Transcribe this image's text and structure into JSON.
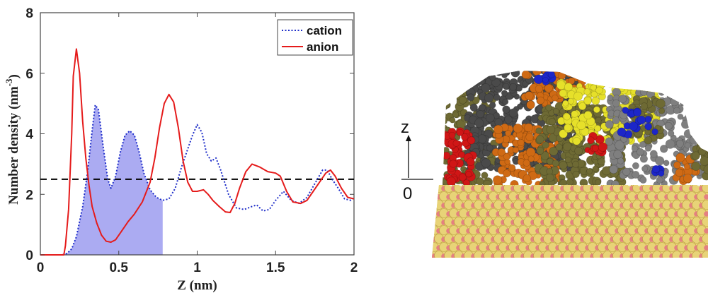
{
  "chart_data": {
    "type": "line",
    "xlabel": "Z (nm)",
    "ylabel_main": "Number density (nm",
    "ylabel_sup": "-3",
    "ylabel_close": ")",
    "xlim": [
      0,
      2
    ],
    "ylim": [
      0,
      8
    ],
    "x_ticks": [
      0,
      0.5,
      1,
      1.5,
      2
    ],
    "x_tick_labels": [
      "0",
      "0.5",
      "1",
      "1.5",
      "2"
    ],
    "y_ticks": [
      0,
      2,
      4,
      6,
      8
    ],
    "y_tick_labels": [
      "0",
      "2",
      "4",
      "6",
      "8"
    ],
    "legend_position": "top-right",
    "reference_line": {
      "y": 2.5,
      "style": "dashed",
      "color": "#000000"
    },
    "shaded_region": {
      "series": "cation",
      "x_from": 0,
      "x_to": 0.78,
      "color": "#9c9cf0"
    },
    "series": [
      {
        "name": "cation",
        "color": "#1f2ec9",
        "style": "dotted",
        "points": [
          [
            0,
            0
          ],
          [
            0.14,
            0
          ],
          [
            0.17,
            0.05
          ],
          [
            0.2,
            0.2
          ],
          [
            0.23,
            0.6
          ],
          [
            0.27,
            1.6
          ],
          [
            0.3,
            2.7
          ],
          [
            0.33,
            4.1
          ],
          [
            0.35,
            4.95
          ],
          [
            0.37,
            4.8
          ],
          [
            0.4,
            3.6
          ],
          [
            0.43,
            2.5
          ],
          [
            0.45,
            2.2
          ],
          [
            0.48,
            2.6
          ],
          [
            0.51,
            3.4
          ],
          [
            0.54,
            3.95
          ],
          [
            0.57,
            4.1
          ],
          [
            0.6,
            3.95
          ],
          [
            0.63,
            3.4
          ],
          [
            0.66,
            2.7
          ],
          [
            0.7,
            2.15
          ],
          [
            0.74,
            1.9
          ],
          [
            0.78,
            1.8
          ],
          [
            0.82,
            1.85
          ],
          [
            0.86,
            2.2
          ],
          [
            0.9,
            2.9
          ],
          [
            0.94,
            3.5
          ],
          [
            0.97,
            3.95
          ],
          [
            1.0,
            4.3
          ],
          [
            1.03,
            4.05
          ],
          [
            1.06,
            3.35
          ],
          [
            1.09,
            3.1
          ],
          [
            1.12,
            3.2
          ],
          [
            1.15,
            2.8
          ],
          [
            1.2,
            2.0
          ],
          [
            1.25,
            1.55
          ],
          [
            1.3,
            1.5
          ],
          [
            1.35,
            1.6
          ],
          [
            1.38,
            1.65
          ],
          [
            1.42,
            1.45
          ],
          [
            1.46,
            1.5
          ],
          [
            1.5,
            1.8
          ],
          [
            1.55,
            2.1
          ],
          [
            1.6,
            1.8
          ],
          [
            1.65,
            1.7
          ],
          [
            1.7,
            1.9
          ],
          [
            1.75,
            2.35
          ],
          [
            1.8,
            2.8
          ],
          [
            1.83,
            2.8
          ],
          [
            1.86,
            2.5
          ],
          [
            1.9,
            2.2
          ],
          [
            1.94,
            1.85
          ],
          [
            1.98,
            1.8
          ],
          [
            2.0,
            1.9
          ]
        ]
      },
      {
        "name": "anion",
        "color": "#e51b1b",
        "style": "solid",
        "points": [
          [
            0,
            0
          ],
          [
            0.15,
            0
          ],
          [
            0.16,
            0.3
          ],
          [
            0.18,
            1.5
          ],
          [
            0.2,
            4.0
          ],
          [
            0.21,
            5.9
          ],
          [
            0.23,
            6.8
          ],
          [
            0.25,
            6.0
          ],
          [
            0.27,
            4.4
          ],
          [
            0.29,
            3.2
          ],
          [
            0.31,
            2.3
          ],
          [
            0.33,
            1.6
          ],
          [
            0.36,
            1.05
          ],
          [
            0.39,
            0.65
          ],
          [
            0.42,
            0.45
          ],
          [
            0.45,
            0.42
          ],
          [
            0.48,
            0.5
          ],
          [
            0.52,
            0.8
          ],
          [
            0.56,
            1.1
          ],
          [
            0.6,
            1.35
          ],
          [
            0.65,
            1.75
          ],
          [
            0.7,
            2.4
          ],
          [
            0.73,
            3.2
          ],
          [
            0.76,
            4.2
          ],
          [
            0.79,
            5.0
          ],
          [
            0.82,
            5.3
          ],
          [
            0.85,
            5.05
          ],
          [
            0.88,
            4.2
          ],
          [
            0.91,
            3.1
          ],
          [
            0.94,
            2.4
          ],
          [
            0.97,
            2.1
          ],
          [
            1.0,
            2.1
          ],
          [
            1.04,
            2.15
          ],
          [
            1.07,
            2.0
          ],
          [
            1.1,
            1.8
          ],
          [
            1.14,
            1.6
          ],
          [
            1.18,
            1.42
          ],
          [
            1.21,
            1.4
          ],
          [
            1.24,
            1.7
          ],
          [
            1.27,
            2.2
          ],
          [
            1.31,
            2.75
          ],
          [
            1.35,
            3.0
          ],
          [
            1.4,
            2.9
          ],
          [
            1.45,
            2.75
          ],
          [
            1.5,
            2.7
          ],
          [
            1.53,
            2.6
          ],
          [
            1.57,
            2.1
          ],
          [
            1.61,
            1.75
          ],
          [
            1.66,
            1.7
          ],
          [
            1.7,
            1.8
          ],
          [
            1.74,
            2.1
          ],
          [
            1.78,
            2.4
          ],
          [
            1.82,
            2.7
          ],
          [
            1.85,
            2.8
          ],
          [
            1.88,
            2.6
          ],
          [
            1.92,
            2.2
          ],
          [
            1.96,
            1.9
          ],
          [
            2.0,
            1.85
          ]
        ]
      }
    ]
  },
  "illustration": {
    "axis_label_z": "z",
    "axis_label_zero": "0",
    "colors": {
      "substrate_yellow": "#e8d377",
      "substrate_pink": "#e48080",
      "substrate_white": "#f2f2f2",
      "olive": "#6e6a34",
      "dark_gray": "#4a4a4a",
      "light_gray": "#7f7f7f",
      "orange": "#cf6a14",
      "yellow": "#e6e02a",
      "red": "#d01616",
      "blue": "#1c26c9"
    }
  }
}
